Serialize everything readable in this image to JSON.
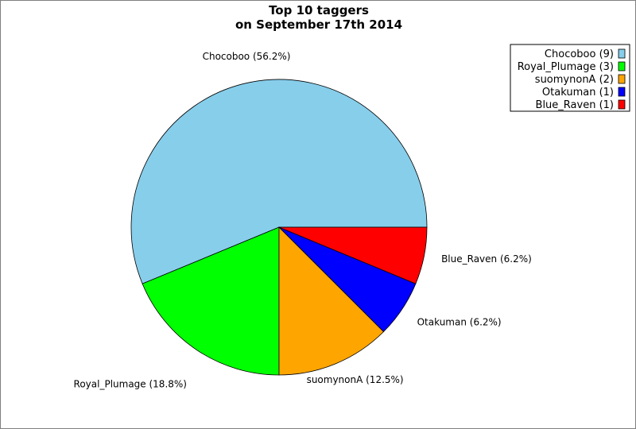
{
  "chart_data": {
    "type": "pie",
    "title": "Top 10 taggers",
    "subtitle": "on September 17th 2014",
    "slices": [
      {
        "name": "Chocoboo",
        "value": 9,
        "percent_label": "Chocoboo (56.2%)",
        "legend_label": "Chocoboo (9)",
        "color": "#87ceeb"
      },
      {
        "name": "Royal_Plumage",
        "value": 3,
        "percent_label": "Royal_Plumage (18.8%)",
        "legend_label": "Royal_Plumage (3)",
        "color": "#00ff00"
      },
      {
        "name": "suomynonA",
        "value": 2,
        "percent_label": "suomynonA (12.5%)",
        "legend_label": "suomynonA (2)",
        "color": "#ffa500"
      },
      {
        "name": "Otakuman",
        "value": 1,
        "percent_label": "Otakuman (6.2%)",
        "legend_label": "Otakuman (1)",
        "color": "#0000ff"
      },
      {
        "name": "Blue_Raven",
        "value": 1,
        "percent_label": "Blue_Raven (6.2%)",
        "legend_label": "Blue_Raven (1)",
        "color": "#ff0000"
      }
    ],
    "legend_position": "top-right"
  }
}
